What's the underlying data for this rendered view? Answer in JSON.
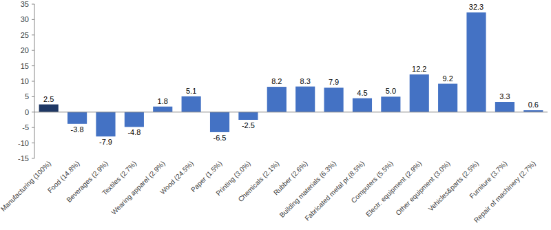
{
  "chart_data": {
    "type": "bar",
    "categories": [
      "Manufacturing (100%)",
      "Food (14.8%)",
      "Beverages (2.9%)",
      "Textiles (2.7%)",
      "Wearing apparel (2.9%)",
      "Wood (24.5%)",
      "Paper (1.5%)",
      "Printing (3.0%)",
      "Chemicals (2.1%)",
      "Rubber (2.6%)",
      "Building materials (6.3%)",
      "Fabricated metal pr.(8.5%)",
      "Computers (5.5%)",
      "Electr. equipment (2.9%)",
      "Other equipment (3.0%)",
      "Vehicles&parts (2.5%)",
      "Furniture (3.7%)",
      "Repair of machinery (2.7%)"
    ],
    "values": [
      2.5,
      -3.8,
      -7.9,
      -4.8,
      1.8,
      5.1,
      -6.5,
      -2.5,
      8.2,
      8.3,
      7.9,
      4.5,
      5.0,
      12.2,
      9.2,
      32.3,
      3.3,
      0.6
    ],
    "value_labels": [
      "2.5",
      "-3.8",
      "-7.9",
      "-4.8",
      "1.8",
      "5.1",
      "-6.5",
      "-2.5",
      "8.2",
      "8.3",
      "7.9",
      "4.5",
      "5.0",
      "12.2",
      "9.2",
      "32.3",
      "3.3",
      "0.6"
    ],
    "colors": [
      "#1f3864",
      "#4472c4",
      "#4472c4",
      "#4472c4",
      "#4472c4",
      "#4472c4",
      "#4472c4",
      "#4472c4",
      "#4472c4",
      "#4472c4",
      "#4472c4",
      "#4472c4",
      "#4472c4",
      "#4472c4",
      "#4472c4",
      "#4472c4",
      "#4472c4",
      "#4472c4"
    ],
    "ylim": [
      -15,
      35
    ],
    "yticks": [
      -15,
      -10,
      -5,
      0,
      5,
      10,
      15,
      20,
      25,
      30,
      35
    ],
    "grid": false,
    "data_labels": true
  }
}
